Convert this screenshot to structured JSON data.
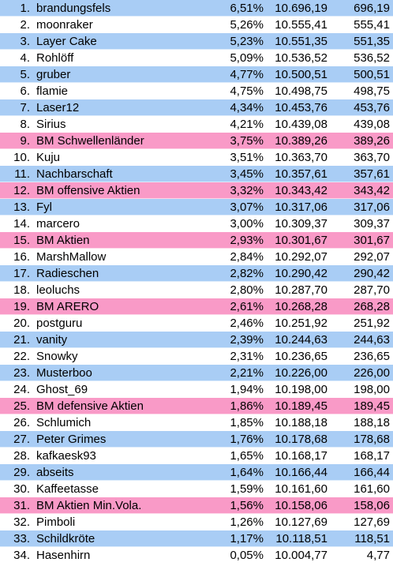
{
  "colors": {
    "blue": "#a9cdf5",
    "white": "#ffffff",
    "pink": "#f99ac7"
  },
  "rows": [
    {
      "rank": "1.",
      "name": "brandungsfels",
      "pct": "6,51%",
      "value": "10.696,19",
      "gain": "696,19",
      "bg": "blue"
    },
    {
      "rank": "2.",
      "name": "moonraker",
      "pct": "5,26%",
      "value": "10.555,41",
      "gain": "555,41",
      "bg": "white"
    },
    {
      "rank": "3.",
      "name": "Layer Cake",
      "pct": "5,23%",
      "value": "10.551,35",
      "gain": "551,35",
      "bg": "blue"
    },
    {
      "rank": "4.",
      "name": "Rohlöff",
      "pct": "5,09%",
      "value": "10.536,52",
      "gain": "536,52",
      "bg": "white"
    },
    {
      "rank": "5.",
      "name": "gruber",
      "pct": "4,77%",
      "value": "10.500,51",
      "gain": "500,51",
      "bg": "blue"
    },
    {
      "rank": "6.",
      "name": "flamie",
      "pct": "4,75%",
      "value": "10.498,75",
      "gain": "498,75",
      "bg": "white"
    },
    {
      "rank": "7.",
      "name": "Laser12",
      "pct": "4,34%",
      "value": "10.453,76",
      "gain": "453,76",
      "bg": "blue"
    },
    {
      "rank": "8.",
      "name": "Sirius",
      "pct": "4,21%",
      "value": "10.439,08",
      "gain": "439,08",
      "bg": "white"
    },
    {
      "rank": "9.",
      "name": "BM Schwellenländer",
      "pct": "3,75%",
      "value": "10.389,26",
      "gain": "389,26",
      "bg": "pink"
    },
    {
      "rank": "10.",
      "name": "Kuju",
      "pct": "3,51%",
      "value": "10.363,70",
      "gain": "363,70",
      "bg": "white"
    },
    {
      "rank": "11.",
      "name": "Nachbarschaft",
      "pct": "3,45%",
      "value": "10.357,61",
      "gain": "357,61",
      "bg": "blue"
    },
    {
      "rank": "12.",
      "name": "BM offensive Aktien",
      "pct": "3,32%",
      "value": "10.343,42",
      "gain": "343,42",
      "bg": "pink"
    },
    {
      "rank": "13.",
      "name": "Fyl",
      "pct": "3,07%",
      "value": "10.317,06",
      "gain": "317,06",
      "bg": "blue"
    },
    {
      "rank": "14.",
      "name": "marcero",
      "pct": "3,00%",
      "value": "10.309,37",
      "gain": "309,37",
      "bg": "white"
    },
    {
      "rank": "15.",
      "name": "BM Aktien",
      "pct": "2,93%",
      "value": "10.301,67",
      "gain": "301,67",
      "bg": "pink"
    },
    {
      "rank": "16.",
      "name": "MarshMallow",
      "pct": "2,84%",
      "value": "10.292,07",
      "gain": "292,07",
      "bg": "white"
    },
    {
      "rank": "17.",
      "name": "Radieschen",
      "pct": "2,82%",
      "value": "10.290,42",
      "gain": "290,42",
      "bg": "blue"
    },
    {
      "rank": "18.",
      "name": "leoluchs",
      "pct": "2,80%",
      "value": "10.287,70",
      "gain": "287,70",
      "bg": "white"
    },
    {
      "rank": "19.",
      "name": "BM ARERO",
      "pct": "2,61%",
      "value": "10.268,28",
      "gain": "268,28",
      "bg": "pink"
    },
    {
      "rank": "20.",
      "name": "postguru",
      "pct": "2,46%",
      "value": "10.251,92",
      "gain": "251,92",
      "bg": "white"
    },
    {
      "rank": "21.",
      "name": "vanity",
      "pct": "2,39%",
      "value": "10.244,63",
      "gain": "244,63",
      "bg": "blue"
    },
    {
      "rank": "22.",
      "name": "Snowky",
      "pct": "2,31%",
      "value": "10.236,65",
      "gain": "236,65",
      "bg": "white"
    },
    {
      "rank": "23.",
      "name": "Musterboo",
      "pct": "2,21%",
      "value": "10.226,00",
      "gain": "226,00",
      "bg": "blue"
    },
    {
      "rank": "24.",
      "name": "Ghost_69",
      "pct": "1,94%",
      "value": "10.198,00",
      "gain": "198,00",
      "bg": "white"
    },
    {
      "rank": "25.",
      "name": "BM defensive Aktien",
      "pct": "1,86%",
      "value": "10.189,45",
      "gain": "189,45",
      "bg": "pink"
    },
    {
      "rank": "26.",
      "name": "Schlumich",
      "pct": "1,85%",
      "value": "10.188,18",
      "gain": "188,18",
      "bg": "white"
    },
    {
      "rank": "27.",
      "name": "Peter Grimes",
      "pct": "1,76%",
      "value": "10.178,68",
      "gain": "178,68",
      "bg": "blue"
    },
    {
      "rank": "28.",
      "name": "kafkaesk93",
      "pct": "1,65%",
      "value": "10.168,17",
      "gain": "168,17",
      "bg": "white"
    },
    {
      "rank": "29.",
      "name": "abseits",
      "pct": "1,64%",
      "value": "10.166,44",
      "gain": "166,44",
      "bg": "blue"
    },
    {
      "rank": "30.",
      "name": "Kaffeetasse",
      "pct": "1,59%",
      "value": "10.161,60",
      "gain": "161,60",
      "bg": "white"
    },
    {
      "rank": "31.",
      "name": "BM Aktien Min.Vola.",
      "pct": "1,56%",
      "value": "10.158,06",
      "gain": "158,06",
      "bg": "pink"
    },
    {
      "rank": "32.",
      "name": "Pimboli",
      "pct": "1,26%",
      "value": "10.127,69",
      "gain": "127,69",
      "bg": "white"
    },
    {
      "rank": "33.",
      "name": "Schildkröte",
      "pct": "1,17%",
      "value": "10.118,51",
      "gain": "118,51",
      "bg": "blue"
    },
    {
      "rank": "34.",
      "name": "Hasenhirn",
      "pct": "0,05%",
      "value": "10.004,77",
      "gain": "4,77",
      "bg": "white"
    }
  ]
}
